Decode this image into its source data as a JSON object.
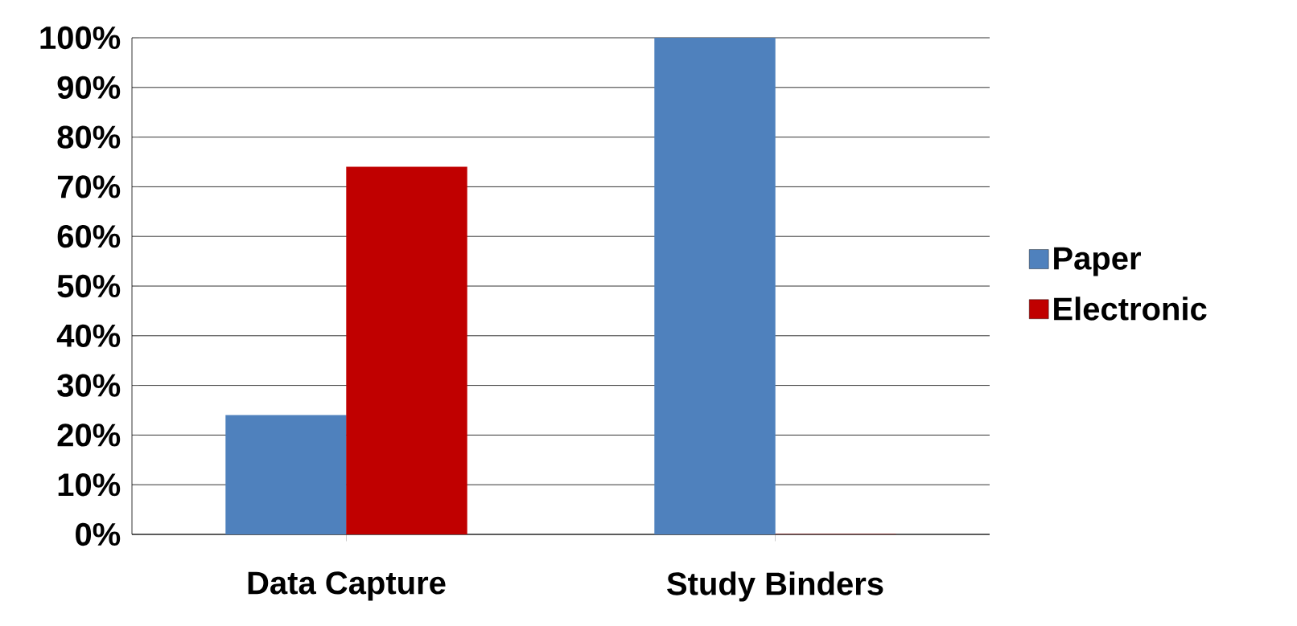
{
  "chart_data": {
    "type": "bar",
    "categories": [
      "Data Capture",
      "Study Binders"
    ],
    "series": [
      {
        "name": "Paper",
        "color": "#4f81bd",
        "values": [
          24,
          100
        ]
      },
      {
        "name": "Electronic",
        "color": "#c00000",
        "values": [
          74,
          0
        ]
      }
    ],
    "ylim": [
      0,
      100
    ],
    "yticks": [
      {
        "value": 0,
        "label": "0%"
      },
      {
        "value": 10,
        "label": "10%"
      },
      {
        "value": 20,
        "label": "20%"
      },
      {
        "value": 30,
        "label": "30%"
      },
      {
        "value": 40,
        "label": "40%"
      },
      {
        "value": 50,
        "label": "50%"
      },
      {
        "value": 60,
        "label": "60%"
      },
      {
        "value": 70,
        "label": "70%"
      },
      {
        "value": 80,
        "label": "80%"
      },
      {
        "value": 90,
        "label": "90%"
      },
      {
        "value": 100,
        "label": "100%"
      }
    ],
    "grid": "y",
    "legend": "right"
  }
}
